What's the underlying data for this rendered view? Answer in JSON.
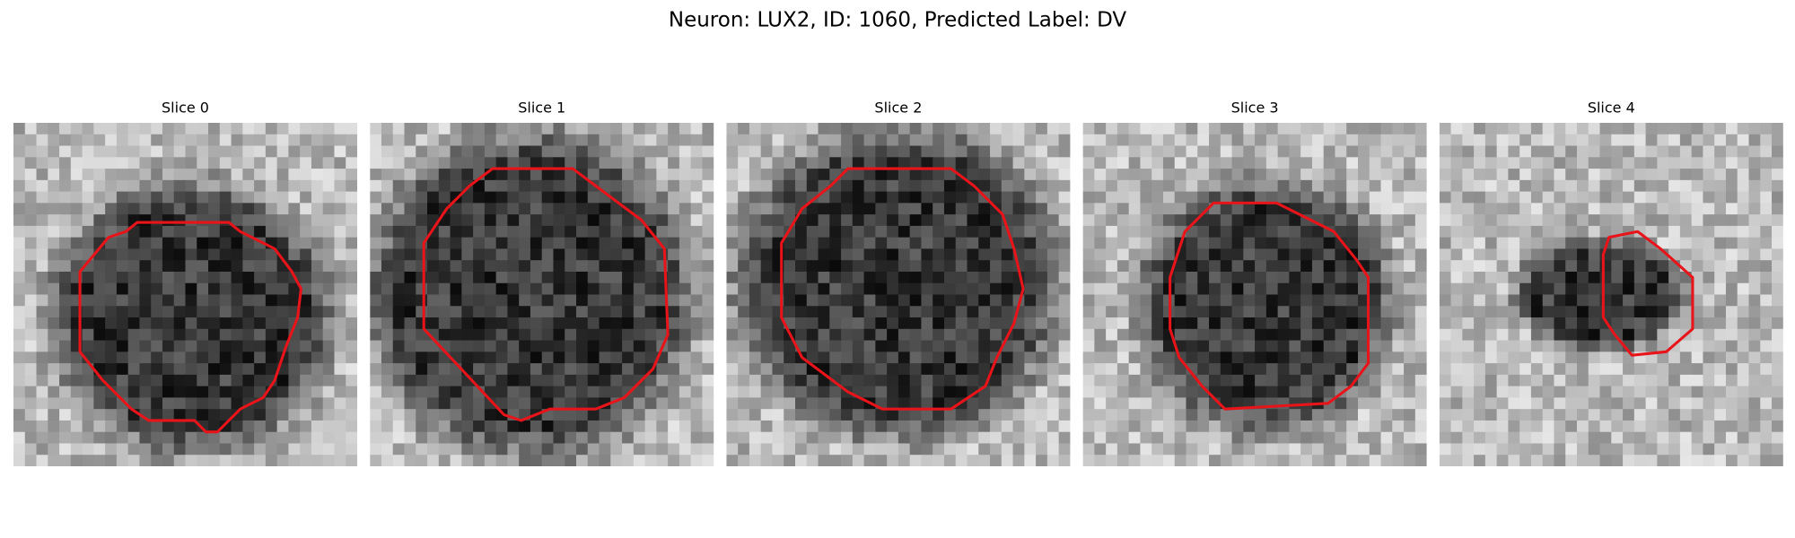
{
  "title": "Neuron: LUX2, ID: 1060, Predicted Label: DV",
  "panels": [
    {
      "title": "Slice 0"
    },
    {
      "title": "Slice 1"
    },
    {
      "title": "Slice 2"
    },
    {
      "title": "Slice 3"
    },
    {
      "title": "Slice 4"
    }
  ]
}
